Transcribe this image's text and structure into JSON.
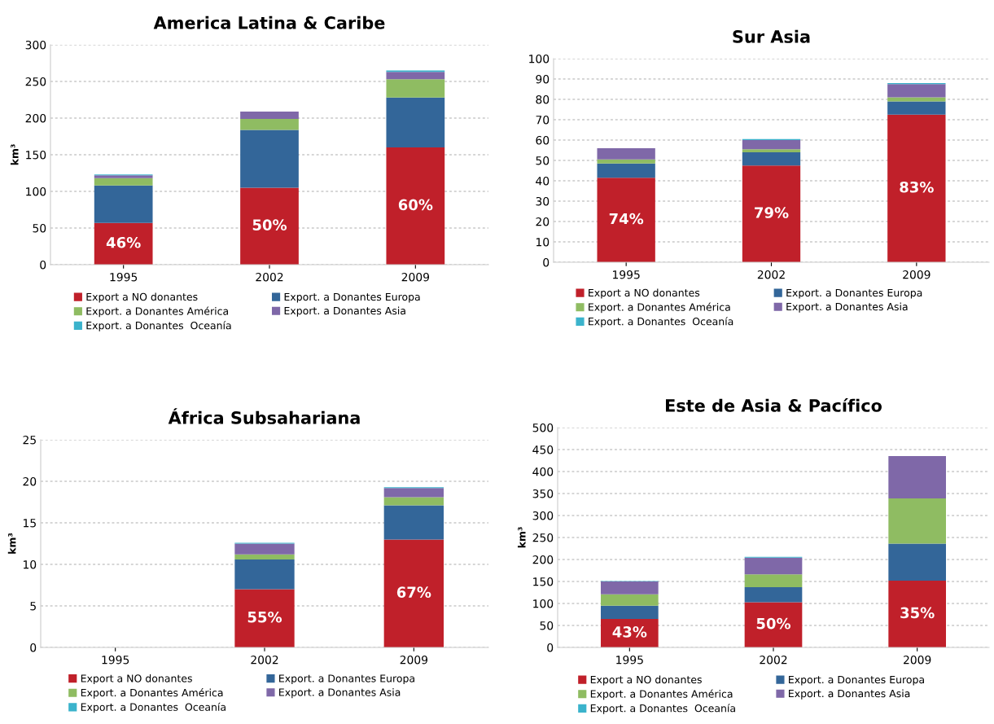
{
  "chart_data": [
    {
      "type": "bar",
      "title": "America Latina & Caribe",
      "ylabel": "km³",
      "annotations": [
        "46%",
        "50%",
        "60%"
      ],
      "categories": [
        "1995",
        "2002",
        "2009"
      ],
      "stacked": true,
      "ylim": [
        0,
        300
      ],
      "yticks": [
        0,
        50,
        100,
        150,
        200,
        250,
        300
      ],
      "grid": "y",
      "legend": "bottom",
      "series": [
        {
          "name": "Export a NO donantes",
          "color": "#c0202a",
          "values": [
            57,
            105,
            160
          ]
        },
        {
          "name": "Export. a Donantes Europa",
          "color": "#336699",
          "values": [
            51,
            79,
            68
          ]
        },
        {
          "name": "Export. a Donantes América",
          "color": "#8fbc62",
          "values": [
            10,
            15,
            25
          ]
        },
        {
          "name": "Export. a Donantes Asia",
          "color": "#7f68a8",
          "values": [
            4,
            10,
            10
          ]
        },
        {
          "name": "Export. a Donantes  Oceanía",
          "color": "#3bb3cc",
          "values": [
            1,
            0,
            2
          ]
        }
      ]
    },
    {
      "type": "bar",
      "title": "Sur Asia",
      "annotations": [
        "74%",
        "79%",
        "83%"
      ],
      "categories": [
        "1995",
        "2002",
        "2009"
      ],
      "stacked": true,
      "ylim": [
        0,
        100
      ],
      "yticks": [
        0,
        10,
        20,
        30,
        40,
        50,
        60,
        70,
        80,
        90,
        100
      ],
      "grid": "y",
      "legend": "bottom",
      "series": [
        {
          "name": "Export a NO donantes",
          "color": "#c0202a",
          "values": [
            41.5,
            47.5,
            72.5
          ]
        },
        {
          "name": "Export. a Donantes Europa",
          "color": "#336699",
          "values": [
            7,
            6.5,
            6.5
          ]
        },
        {
          "name": "Export. a Donantes América",
          "color": "#8fbc62",
          "values": [
            2,
            1.5,
            2
          ]
        },
        {
          "name": "Export. a Donantes Asia",
          "color": "#7f68a8",
          "values": [
            5.5,
            4.5,
            6.5
          ]
        },
        {
          "name": "Export. a Donantes  Oceanía",
          "color": "#3bb3cc",
          "values": [
            0,
            0.5,
            0.5
          ]
        }
      ]
    },
    {
      "type": "bar",
      "title": "África Subsahariana",
      "ylabel": "km³",
      "annotations": [
        "55%",
        "67%"
      ],
      "categories": [
        "1995",
        "2002",
        "2009"
      ],
      "stacked": true,
      "ylim": [
        0,
        25
      ],
      "yticks": [
        0,
        5,
        10,
        15,
        20,
        25
      ],
      "grid": "y",
      "legend": "bottom",
      "series": [
        {
          "name": "Export a NO donantes",
          "color": "#c0202a",
          "values": [
            null,
            7,
            13
          ]
        },
        {
          "name": "Export. a Donantes Europa",
          "color": "#336699",
          "values": [
            null,
            3.6,
            4.1
          ]
        },
        {
          "name": "Export. a Donantes América",
          "color": "#8fbc62",
          "values": [
            null,
            0.6,
            1
          ]
        },
        {
          "name": "Export. a Donantes Asia",
          "color": "#7f68a8",
          "values": [
            null,
            1.3,
            1.1
          ]
        },
        {
          "name": "Export. a Donantes  Oceanía",
          "color": "#3bb3cc",
          "values": [
            null,
            0.1,
            0.1
          ]
        }
      ]
    },
    {
      "type": "bar",
      "title": "Este de Asia & Pacífico",
      "ylabel": "km³",
      "annotations": [
        "43%",
        "50%",
        "35%"
      ],
      "categories": [
        "1995",
        "2002",
        "2009"
      ],
      "stacked": true,
      "ylim": [
        0,
        500
      ],
      "yticks": [
        0,
        50,
        100,
        150,
        200,
        250,
        300,
        350,
        400,
        450,
        500
      ],
      "grid": "y",
      "legend": "bottom",
      "series": [
        {
          "name": "Export a NO donantes",
          "color": "#c0202a",
          "values": [
            65,
            103,
            152
          ]
        },
        {
          "name": "Export. a Donantes Europa",
          "color": "#336699",
          "values": [
            30,
            34,
            84
          ]
        },
        {
          "name": "Export. a Donantes América",
          "color": "#8fbc62",
          "values": [
            26,
            29,
            103
          ]
        },
        {
          "name": "Export. a Donantes Asia",
          "color": "#7f68a8",
          "values": [
            29,
            38,
            96
          ]
        },
        {
          "name": "Export. a Donantes  Oceanía",
          "color": "#3bb3cc",
          "values": [
            1,
            2,
            0
          ]
        }
      ]
    }
  ]
}
